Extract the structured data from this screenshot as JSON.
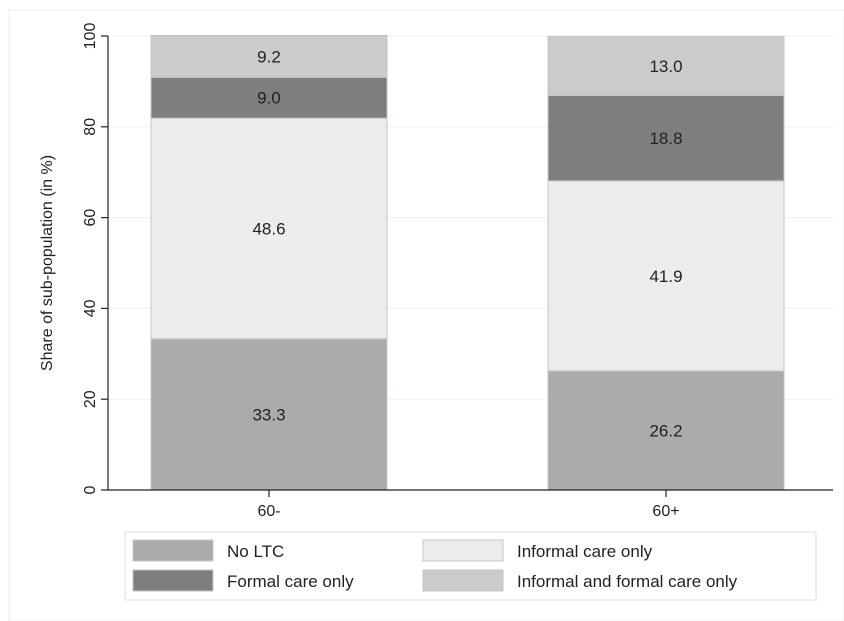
{
  "chart_data": {
    "type": "bar",
    "stacked": true,
    "categories": [
      "60-",
      "60+"
    ],
    "series": [
      {
        "name": "No LTC",
        "values": [
          33.3,
          26.2
        ],
        "color": "#ababab"
      },
      {
        "name": "Informal care only",
        "values": [
          48.6,
          41.9
        ],
        "color": "#ececec"
      },
      {
        "name": "Formal care only",
        "values": [
          9.0,
          18.8
        ],
        "color": "#7e7e7e"
      },
      {
        "name": "Informal and formal care only",
        "values": [
          9.2,
          13.0
        ],
        "color": "#cbcbcb"
      }
    ],
    "data_labels": [
      [
        "33.3",
        "48.6",
        "9.0",
        "9.2"
      ],
      [
        "26.2",
        "41.9",
        "18.8",
        "13.0"
      ]
    ],
    "ylabel": "Share of sub-population (in %)",
    "xlabel": "",
    "ylim": [
      0,
      100
    ],
    "yticks": [
      "0",
      "20",
      "40",
      "60",
      "80",
      "100"
    ],
    "grid": true,
    "legend": {
      "position": "bottom",
      "columns": 2,
      "order": [
        "No LTC",
        "Informal care only",
        "Formal care only",
        "Informal and formal care only"
      ]
    }
  }
}
